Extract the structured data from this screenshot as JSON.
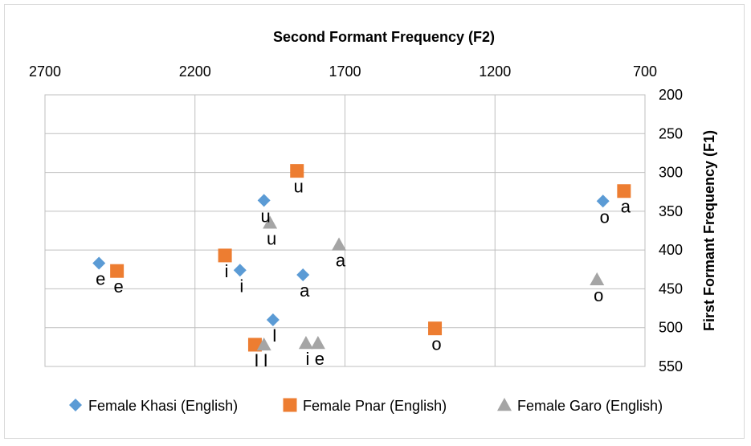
{
  "chart_data": {
    "type": "scatter",
    "title": "",
    "xlabel": "Second Formant Frequency (F2)",
    "ylabel": "First Formant Frequency (F1)",
    "xlim": [
      2700,
      700
    ],
    "ylim": [
      200,
      550
    ],
    "x_reversed": true,
    "y_reversed": true,
    "x_axis_position": "top",
    "y_axis_position": "right",
    "x_ticks": [
      2700,
      2200,
      1700,
      1200,
      700
    ],
    "y_ticks": [
      200,
      250,
      300,
      350,
      400,
      450,
      500,
      550
    ],
    "grid": true,
    "legend_position": "bottom",
    "series": [
      {
        "name": "Female Khasi (English)",
        "marker": "diamond",
        "color": "#5b9bd5",
        "points": [
          {
            "x": 2520,
            "y": 417,
            "label": "e"
          },
          {
            "x": 2050,
            "y": 426,
            "label": "i"
          },
          {
            "x": 1970,
            "y": 336,
            "label": "u"
          },
          {
            "x": 1840,
            "y": 432,
            "label": "a"
          },
          {
            "x": 1940,
            "y": 490,
            "label": "I"
          },
          {
            "x": 840,
            "y": 337,
            "label": "o"
          }
        ]
      },
      {
        "name": "Female Pnar (English)",
        "marker": "square",
        "color": "#ed7d31",
        "points": [
          {
            "x": 2460,
            "y": 427,
            "label": "e"
          },
          {
            "x": 2100,
            "y": 407,
            "label": "i"
          },
          {
            "x": 1860,
            "y": 298,
            "label": "u"
          },
          {
            "x": 2000,
            "y": 522,
            "label": "I"
          },
          {
            "x": 1400,
            "y": 501,
            "label": "o"
          },
          {
            "x": 770,
            "y": 324,
            "label": "a"
          }
        ]
      },
      {
        "name": "Female Garo (English)",
        "marker": "triangle",
        "color": "#a5a5a5",
        "points": [
          {
            "x": 1950,
            "y": 365,
            "label": "u"
          },
          {
            "x": 1720,
            "y": 393,
            "label": "a"
          },
          {
            "x": 1970,
            "y": 522,
            "label": "I"
          },
          {
            "x": 1830,
            "y": 520,
            "label": "i"
          },
          {
            "x": 1790,
            "y": 520,
            "label": "e"
          },
          {
            "x": 860,
            "y": 438,
            "label": "o"
          }
        ]
      }
    ]
  }
}
